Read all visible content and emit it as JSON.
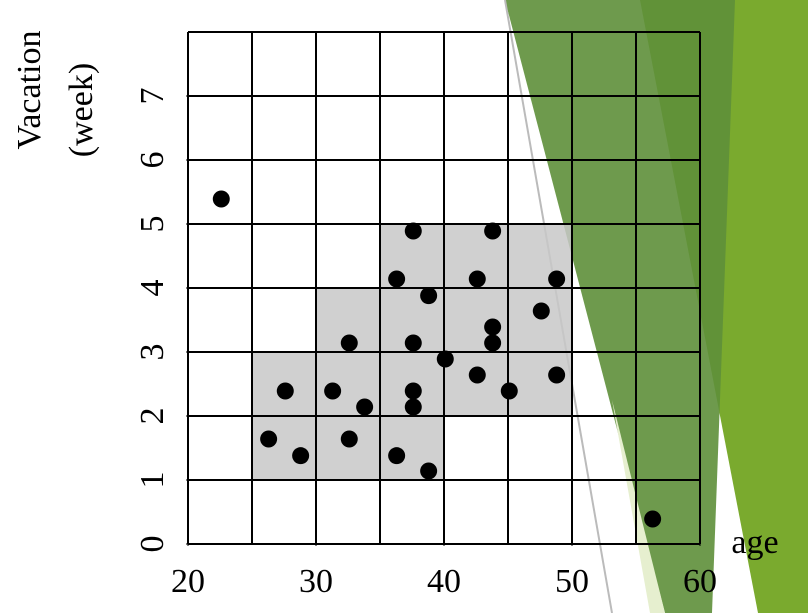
{
  "chart_data": {
    "type": "scatter",
    "xlabel": "age",
    "ylabel": [
      "Vacation",
      "(week)"
    ],
    "xlim": [
      20,
      60
    ],
    "ylim": [
      0,
      8
    ],
    "xticks": [
      20,
      30,
      40,
      50,
      60
    ],
    "yticks": [
      0,
      1,
      2,
      3,
      4,
      5,
      6,
      7
    ],
    "xgrid": [
      20,
      25,
      30,
      35,
      40,
      45,
      50,
      55,
      60
    ],
    "ygrid": [
      0,
      1,
      2,
      3,
      4,
      5,
      6,
      7,
      8
    ],
    "grid": true,
    "color": "#000000",
    "shaded_color": "#c8c8c8",
    "shaded_cells": [
      {
        "x": [
          25,
          30
        ],
        "y": [
          1,
          3
        ]
      },
      {
        "x": [
          30,
          35
        ],
        "y": [
          1,
          4
        ]
      },
      {
        "x": [
          35,
          40
        ],
        "y": [
          1,
          5
        ]
      },
      {
        "x": [
          40,
          45
        ],
        "y": [
          2,
          5
        ]
      },
      {
        "x": [
          45,
          50
        ],
        "y": [
          2,
          5
        ]
      }
    ],
    "x": [
      22.6,
      26.3,
      28.8,
      27.6,
      31.3,
      32.6,
      33.8,
      32.6,
      36.3,
      38.8,
      37.6,
      37.6,
      37.6,
      36.3,
      37.6,
      38.8,
      40.1,
      42.6,
      45.1,
      43.8,
      43.8,
      42.6,
      43.8,
      47.6,
      48.8,
      48.8,
      56.3
    ],
    "values": [
      5.39,
      1.64,
      1.38,
      2.39,
      2.39,
      1.64,
      2.14,
      3.14,
      1.38,
      1.14,
      2.39,
      2.14,
      3.14,
      4.14,
      4.89,
      3.88,
      2.89,
      2.64,
      2.39,
      3.14,
      3.39,
      4.14,
      4.89,
      3.64,
      4.14,
      2.64,
      0.39
    ]
  }
}
